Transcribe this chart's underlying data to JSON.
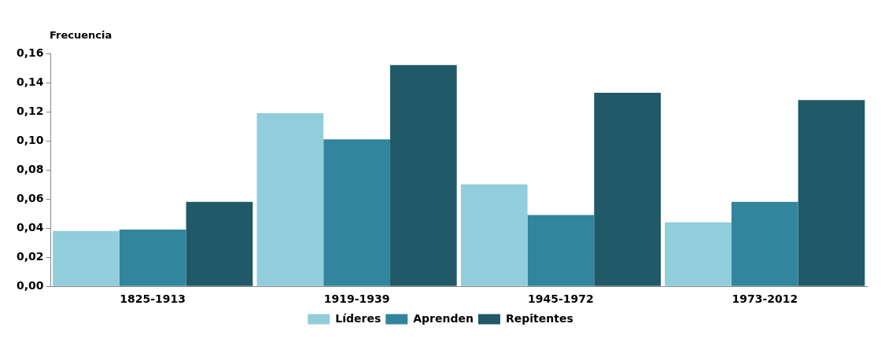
{
  "chart_data": {
    "type": "bar",
    "ylabel": "Frecuencia",
    "categories": [
      "1825-1913",
      "1919-1939",
      "1945-1972",
      "1973-2012"
    ],
    "series": [
      {
        "name": "Líderes",
        "color": "#92cddc",
        "values": [
          0.038,
          0.119,
          0.07,
          0.044
        ]
      },
      {
        "name": "Aprenden",
        "color": "#31859c",
        "values": [
          0.039,
          0.101,
          0.049,
          0.058
        ]
      },
      {
        "name": "Repitentes",
        "color": "#215968",
        "values": [
          0.058,
          0.152,
          0.133,
          0.128
        ]
      }
    ],
    "ylim": [
      0,
      0.16
    ],
    "yticks": [
      {
        "value": 0,
        "label": "0,00"
      },
      {
        "value": 0.02,
        "label": "0,02"
      },
      {
        "value": 0.04,
        "label": "0,04"
      },
      {
        "value": 0.06,
        "label": "0,06"
      },
      {
        "value": 0.08,
        "label": "0,08"
      },
      {
        "value": 0.1,
        "label": "0,10"
      },
      {
        "value": 0.12,
        "label": "0,12"
      },
      {
        "value": 0.14,
        "label": "0,14"
      },
      {
        "value": 0.16,
        "label": "0,16"
      }
    ],
    "grid": false,
    "legend": "bottom"
  }
}
